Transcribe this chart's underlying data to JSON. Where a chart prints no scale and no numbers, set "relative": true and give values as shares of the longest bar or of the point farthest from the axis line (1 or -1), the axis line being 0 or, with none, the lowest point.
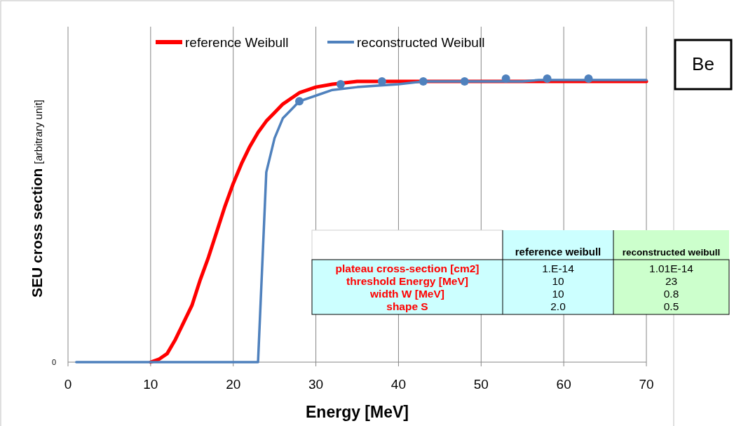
{
  "chart_data": {
    "type": "line",
    "xlabel": "Energy [MeV]",
    "ylabel": "SEU cross section [arbitrary unit]",
    "relative": true,
    "xlim": [
      0,
      70
    ],
    "xticks": [
      0,
      10,
      20,
      30,
      40,
      50,
      60,
      70
    ],
    "grid": "x",
    "legend": "top",
    "marker": "none",
    "series": [
      {
        "name": "reference Weibull",
        "color": "#ff0000",
        "x": [
          10,
          11,
          12,
          13,
          14,
          15,
          16,
          17,
          18,
          19,
          20,
          21,
          22,
          23,
          24,
          25,
          26,
          27,
          28,
          29,
          30,
          32,
          35,
          40,
          70
        ],
        "values": [
          0,
          0.01,
          0.03,
          0.08,
          0.14,
          0.2,
          0.29,
          0.37,
          0.46,
          0.55,
          0.63,
          0.7,
          0.76,
          0.81,
          0.85,
          0.88,
          0.91,
          0.93,
          0.95,
          0.96,
          0.97,
          0.98,
          0.99,
          0.99,
          0.99
        ]
      },
      {
        "name": "reconstructed Weibull",
        "color": "#4f81bd",
        "x": [
          1,
          23,
          24,
          25,
          26,
          27,
          28,
          30,
          32,
          35,
          40,
          43,
          50,
          55,
          57,
          60,
          70
        ],
        "values": [
          0,
          0,
          0.67,
          0.79,
          0.86,
          0.89,
          0.92,
          0.94,
          0.96,
          0.97,
          0.98,
          0.99,
          0.99,
          0.99,
          0.995,
          0.995,
          0.995
        ]
      },
      {
        "type": "scatter",
        "marker": "circle",
        "color": "#4f81bd",
        "x": [
          28,
          33,
          38,
          43,
          48,
          53,
          58,
          63
        ],
        "values": [
          0.92,
          0.98,
          0.99,
          0.99,
          0.99,
          1,
          1,
          1
        ]
      }
    ],
    "annotations": [
      "0",
      "Be",
      "reference weibull",
      "reconstructed weibull",
      "plateau cross-section [cm2]",
      "1.E-14",
      "1.01E-14",
      "threshold Energy [MeV]",
      "10",
      "23",
      "width W [MeV]",
      "10",
      "0.8",
      "shape S",
      "2.0",
      "0.5"
    ]
  }
}
